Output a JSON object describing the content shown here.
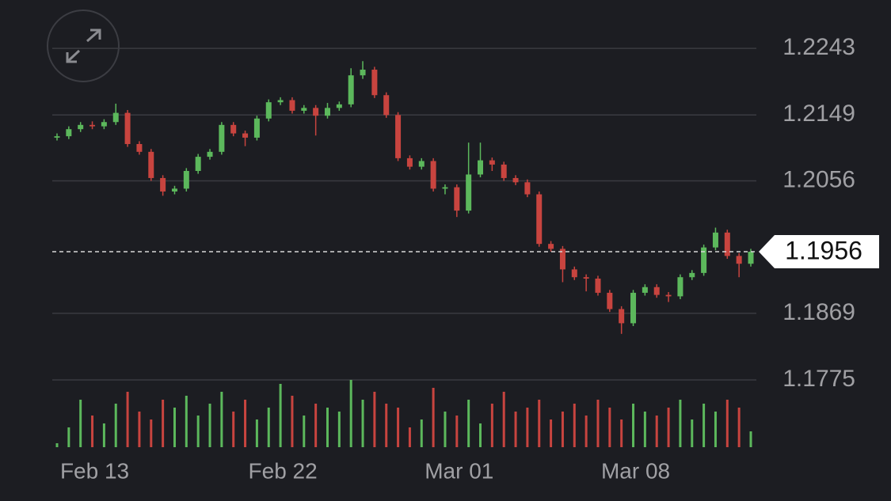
{
  "chart_data": {
    "type": "candlestick",
    "categories": [
      null,
      null,
      null,
      "Feb 13",
      null,
      null,
      null,
      null,
      null,
      null,
      null,
      null,
      null,
      null,
      null,
      null,
      null,
      null,
      null,
      "Feb 22",
      null,
      null,
      null,
      null,
      null,
      null,
      null,
      null,
      null,
      null,
      null,
      null,
      null,
      null,
      "Mar 01",
      null,
      null,
      null,
      null,
      null,
      null,
      null,
      null,
      null,
      null,
      null,
      null,
      null,
      null,
      "Mar 08",
      null,
      null,
      null,
      null,
      null,
      null,
      null,
      null,
      null,
      null
    ],
    "open": [
      1.2117,
      1.2119,
      1.2129,
      1.2135,
      1.2133,
      1.2139,
      1.2152,
      1.2108,
      1.2097,
      1.206,
      1.2041,
      1.2045,
      1.207,
      1.209,
      1.2097,
      1.2135,
      1.2123,
      1.2117,
      1.2144,
      1.2167,
      1.217,
      1.2155,
      1.2159,
      1.2148,
      1.2159,
      1.2164,
      1.2205,
      1.2213,
      1.2177,
      1.2149,
      1.2088,
      1.2076,
      1.2084,
      1.2045,
      1.2047,
      1.2014,
      1.2065,
      1.2085,
      1.2079,
      1.206,
      1.2054,
      1.2037,
      1.1967,
      1.196,
      1.1931,
      1.192,
      1.1918,
      1.1898,
      1.1875,
      1.1855,
      1.1898,
      1.1906,
      1.1895,
      1.1893,
      1.192,
      1.1926,
      1.1962,
      1.1983,
      1.195,
      1.1939
    ],
    "high": [
      1.2123,
      1.2133,
      1.2139,
      1.214,
      1.2143,
      1.2165,
      1.2156,
      1.2112,
      1.2101,
      1.2064,
      1.2049,
      1.2074,
      1.2094,
      1.2101,
      1.2139,
      1.2139,
      1.2127,
      1.2148,
      1.2171,
      1.2174,
      1.2174,
      1.2163,
      1.2163,
      1.2166,
      1.2168,
      1.2215,
      1.2225,
      1.2217,
      1.2181,
      1.2153,
      1.2092,
      1.2088,
      1.2088,
      1.2051,
      1.2051,
      1.211,
      1.211,
      1.2089,
      1.2083,
      1.2064,
      1.2058,
      1.2041,
      1.1971,
      1.1964,
      1.1935,
      1.1924,
      1.1922,
      1.1902,
      1.1879,
      1.1902,
      1.191,
      1.191,
      1.1899,
      1.1924,
      1.193,
      1.1966,
      1.199,
      1.1987,
      1.1954,
      1.196
    ],
    "low": [
      1.2113,
      1.2115,
      1.2125,
      1.2129,
      1.2129,
      1.2135,
      1.2104,
      1.2093,
      1.2056,
      1.2035,
      1.2037,
      1.2041,
      1.2066,
      1.2086,
      1.2093,
      1.2119,
      1.2105,
      1.2113,
      1.214,
      1.2163,
      1.2151,
      1.2151,
      1.212,
      1.2144,
      1.2155,
      1.216,
      1.22,
      1.2173,
      1.2145,
      1.2084,
      1.2072,
      1.2072,
      1.2041,
      1.2037,
      1.2005,
      1.201,
      1.2061,
      1.207,
      1.2056,
      1.205,
      1.2033,
      1.1963,
      1.1956,
      1.1913,
      1.1916,
      1.19,
      1.1894,
      1.1871,
      1.184,
      1.1851,
      1.1894,
      1.1891,
      1.1885,
      1.1889,
      1.1916,
      1.1922,
      1.1958,
      1.1946,
      1.192,
      1.1935
    ],
    "close": [
      1.2119,
      1.2129,
      1.2135,
      1.2133,
      1.2139,
      1.2152,
      1.2108,
      1.2097,
      1.206,
      1.2041,
      1.2045,
      1.207,
      1.209,
      1.2097,
      1.2135,
      1.2123,
      1.2117,
      1.2144,
      1.2167,
      1.217,
      1.2155,
      1.2159,
      1.2148,
      1.2159,
      1.2164,
      1.2205,
      1.2213,
      1.2177,
      1.2149,
      1.2088,
      1.2076,
      1.2084,
      1.2045,
      1.2047,
      1.2014,
      1.2065,
      1.2085,
      1.2079,
      1.206,
      1.2054,
      1.2037,
      1.1967,
      1.196,
      1.1931,
      1.192,
      1.1918,
      1.1898,
      1.1875,
      1.1855,
      1.1898,
      1.1906,
      1.1895,
      1.1893,
      1.192,
      1.1926,
      1.1962,
      1.1983,
      1.195,
      1.1939,
      1.1956
    ],
    "volume": [
      5,
      25,
      60,
      40,
      30,
      55,
      70,
      45,
      35,
      60,
      50,
      65,
      40,
      55,
      70,
      45,
      60,
      35,
      50,
      80,
      65,
      40,
      55,
      50,
      45,
      85,
      60,
      70,
      55,
      50,
      25,
      35,
      75,
      45,
      40,
      60,
      30,
      55,
      70,
      45,
      50,
      60,
      35,
      45,
      55,
      40,
      60,
      50,
      35,
      55,
      45,
      40,
      50,
      60,
      35,
      55,
      45,
      60,
      50,
      20
    ],
    "up_color": "#5cb85c",
    "down_color": "#c8443f",
    "ylim": [
      1.1775,
      1.2289
    ],
    "yticks": [
      1.2243,
      1.2149,
      1.2056,
      1.1869,
      1.1775
    ],
    "grid": true,
    "last_price": 1.1956
  }
}
